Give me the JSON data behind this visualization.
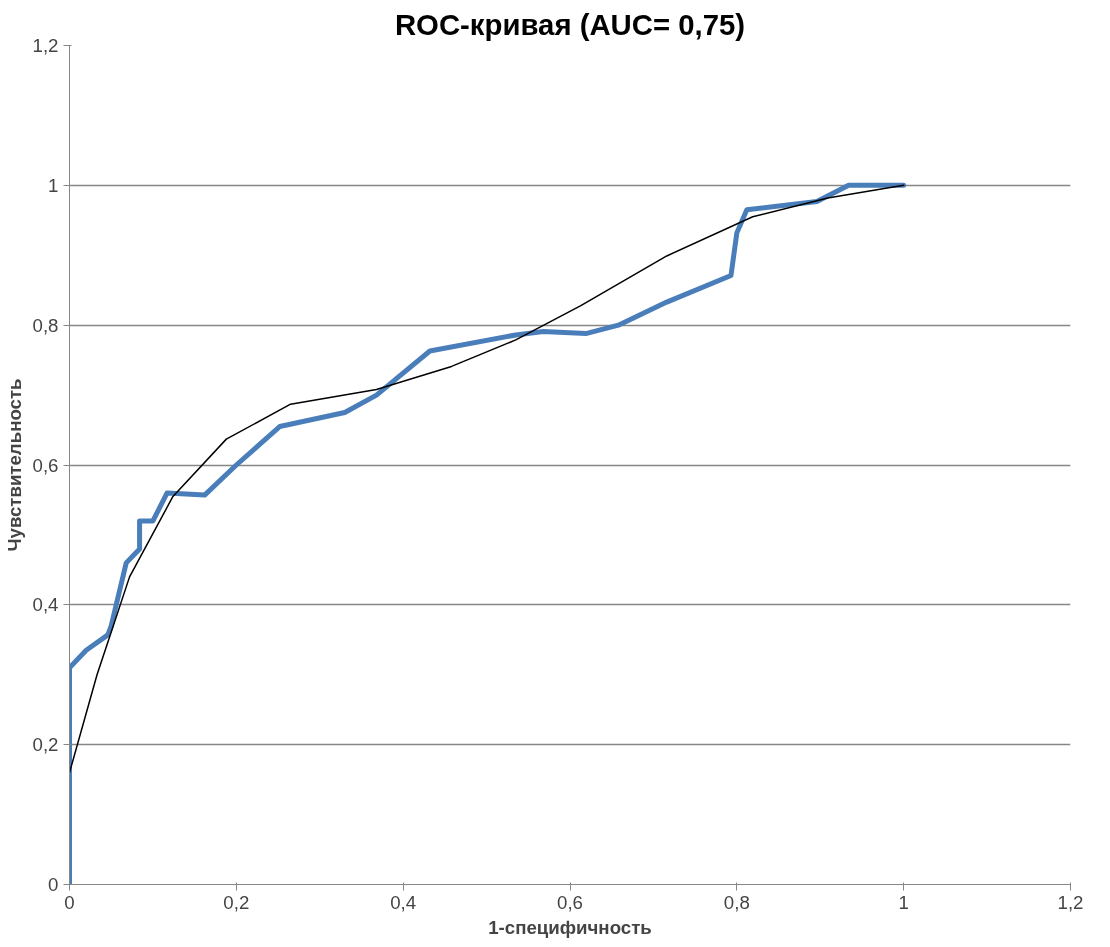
{
  "chart_data": {
    "type": "line",
    "title": "ROC-кривая (AUC= 0,75)",
    "xlabel": "1-специфичность",
    "ylabel": "Чувствительность",
    "xlim": [
      0,
      1.2
    ],
    "ylim": [
      0,
      1.2
    ],
    "xticks": [
      0,
      {
        "value": 0.2,
        "label": "0,2"
      },
      {
        "value": 0.4,
        "label": "0,4"
      },
      {
        "value": 0.6,
        "label": "0,6"
      },
      {
        "value": 0.8,
        "label": "0,8"
      },
      1,
      {
        "value": 1.2,
        "label": "1,2"
      }
    ],
    "yticks": [
      0,
      {
        "value": 0.2,
        "label": "0,2"
      },
      {
        "value": 0.4,
        "label": "0,4"
      },
      {
        "value": 0.6,
        "label": "0,6"
      },
      {
        "value": 0.8,
        "label": "0,8"
      },
      1,
      {
        "value": 1.2,
        "label": "1,2"
      }
    ],
    "grid": "y",
    "marker": "none",
    "line_style": "solid",
    "series": [
      {
        "color": "#4a7ebb",
        "x": [
          0,
          0,
          0.02,
          0.046,
          0.05,
          0.068,
          0.084,
          0.084,
          0.1,
          0.117,
          0.162,
          0.2,
          0.252,
          0.33,
          0.368,
          0.432,
          0.535,
          0.568,
          0.619,
          0.658,
          0.716,
          0.793,
          0.8,
          0.812,
          0.896,
          0.934,
          1
        ],
        "values": [
          0,
          0.31,
          0.335,
          0.357,
          0.37,
          0.46,
          0.48,
          0.52,
          0.52,
          0.56,
          0.557,
          0.6,
          0.655,
          0.675,
          0.7,
          0.763,
          0.786,
          0.791,
          0.788,
          0.8,
          0.833,
          0.871,
          0.932,
          0.965,
          0.977,
          1,
          1
        ]
      },
      {
        "color": "#000000",
        "x": [
          0,
          0.033,
          0.072,
          0.124,
          0.188,
          0.265,
          0.368,
          0.458,
          0.535,
          0.613,
          0.716,
          0.819,
          0.909,
          1
        ],
        "values": [
          0.16,
          0.3,
          0.44,
          0.555,
          0.637,
          0.687,
          0.708,
          0.741,
          0.779,
          0.828,
          0.899,
          0.955,
          0.982,
          1
        ]
      }
    ]
  }
}
